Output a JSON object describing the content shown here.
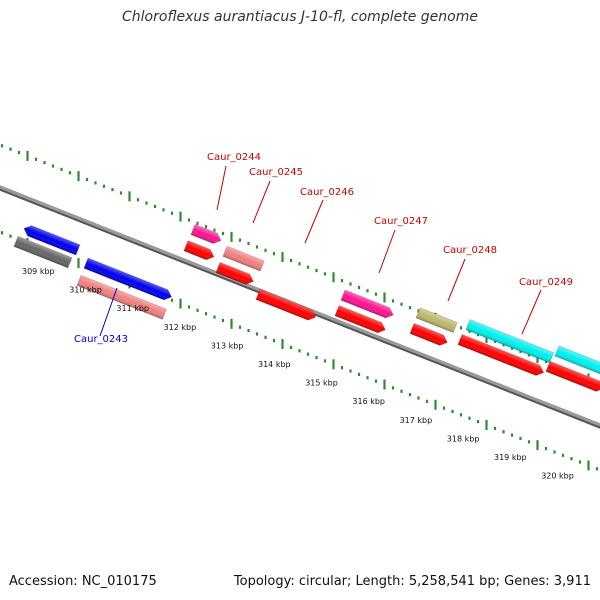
{
  "title": "Chloroflexus aurantiacus J-10-fl, complete genome",
  "footer": {
    "accession": "Accession: NC_010175",
    "summary": "Topology: circular; Length: 5,258,541 bp; Genes: 3,911"
  },
  "colors": {
    "backbone": "#808080",
    "tick": "#2e8b2e",
    "label_red": "#cc0000",
    "label_blue": "#0000cc"
  },
  "kbp_labels": [
    "309 kbp",
    "310 kbp",
    "311 kbp",
    "312 kbp",
    "313 kbp",
    "314 kbp",
    "315 kbp",
    "316 kbp",
    "317 kbp",
    "318 kbp",
    "319 kbp",
    "320 kbp"
  ],
  "gene_labels": [
    {
      "id": "Caur_0243",
      "color": "#0000cc"
    },
    {
      "id": "Caur_0244",
      "color": "#cc0000"
    },
    {
      "id": "Caur_0245",
      "color": "#cc0000"
    },
    {
      "id": "Caur_0246",
      "color": "#cc0000"
    },
    {
      "id": "Caur_0247",
      "color": "#cc0000"
    },
    {
      "id": "Caur_0248",
      "color": "#cc0000"
    },
    {
      "id": "Caur_0249",
      "color": "#cc0000"
    }
  ],
  "feature_colors": {
    "blue": "#0000ee",
    "gray": "#666666",
    "salmon": "#f08080",
    "magenta": "#ff1493",
    "red": "#ff0000",
    "olive": "#bdb76b",
    "cyan": "#00f0f0"
  }
}
